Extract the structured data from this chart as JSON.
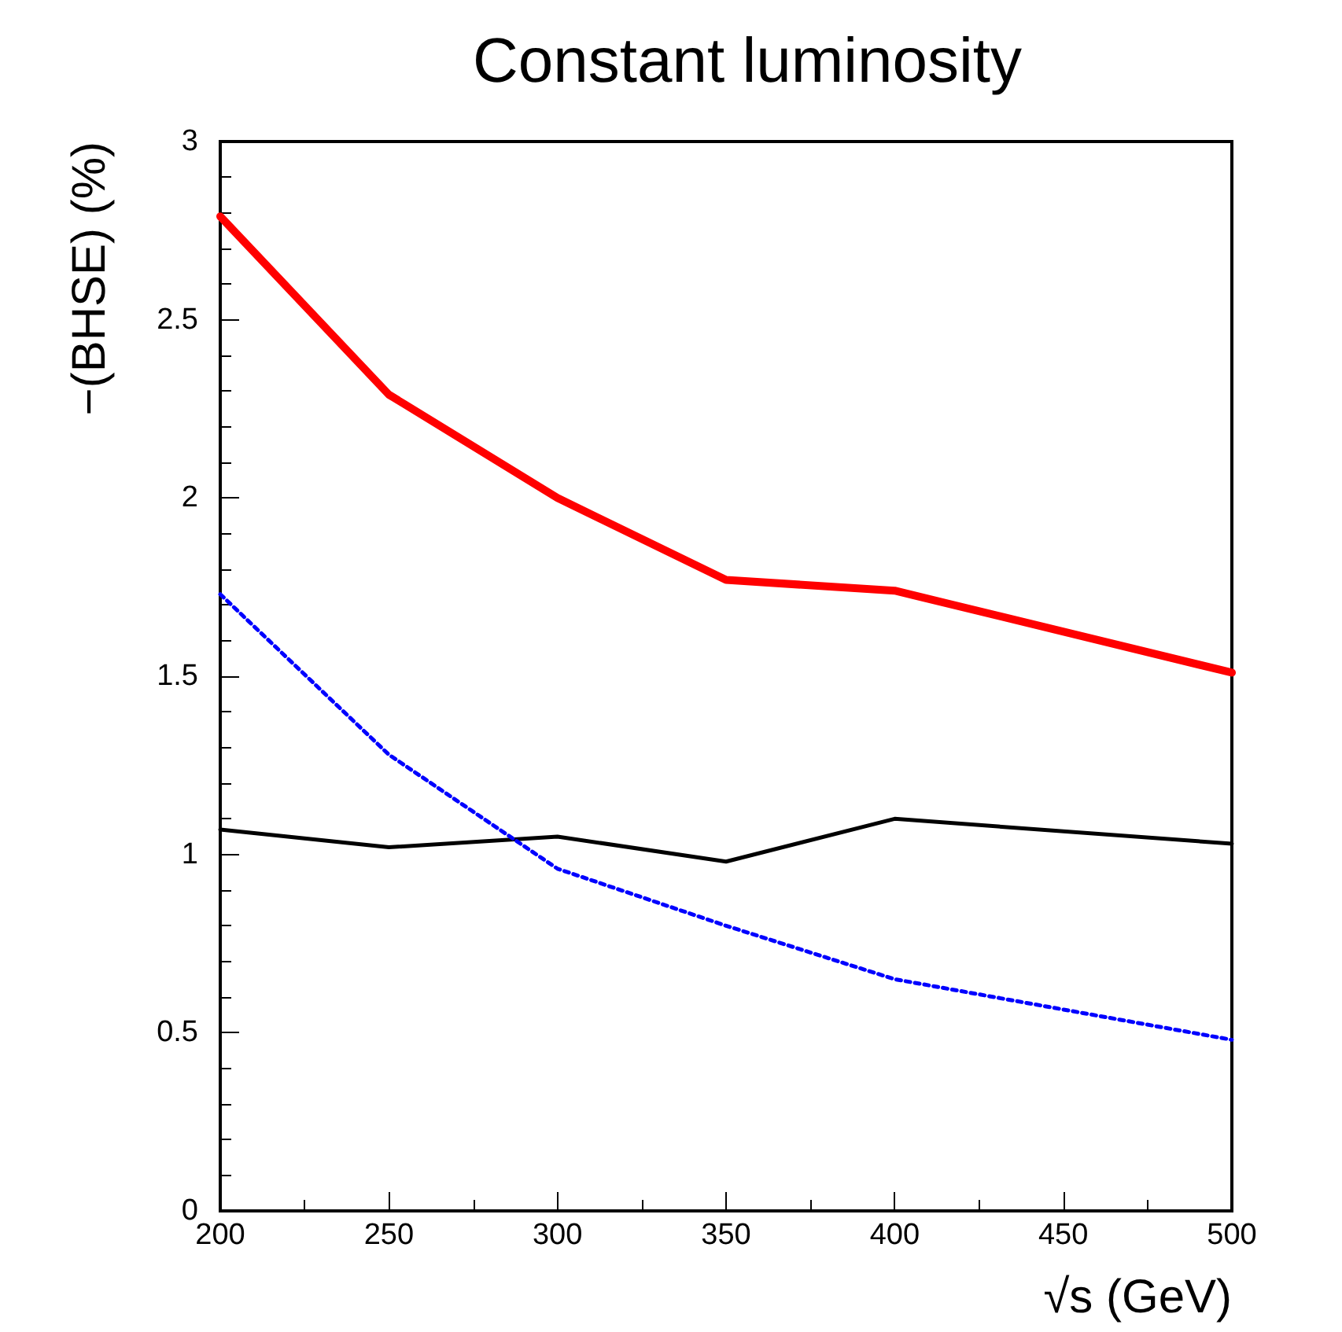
{
  "chart_data": {
    "type": "line",
    "title": "Constant luminosity",
    "xlabel": "√s (GeV)",
    "ylabel": "−(BHSE) (%)",
    "x": [
      200,
      250,
      300,
      350,
      400,
      500
    ],
    "series": [
      {
        "color": "#ff0000",
        "values": [
          2.79,
          2.29,
          2.0,
          1.77,
          1.74,
          1.51
        ],
        "line_style": "solid"
      },
      {
        "color": "#0000ff",
        "values": [
          1.73,
          1.28,
          0.96,
          0.8,
          0.65,
          0.48
        ],
        "line_style": "dotted"
      },
      {
        "color": "#000000",
        "values": [
          1.07,
          1.02,
          1.05,
          0.98,
          1.1,
          1.03
        ],
        "line_style": "solid"
      }
    ],
    "xlim": [
      200,
      500
    ],
    "xticks": [
      200,
      250,
      300,
      350,
      400,
      450,
      500
    ],
    "ylim": [
      0,
      3
    ],
    "yticks": [
      0,
      {
        "value": 0.5,
        "label": "0.5"
      },
      1,
      {
        "value": 1.5,
        "label": "1.5"
      },
      2,
      {
        "value": 2.5,
        "label": "2.5"
      },
      3
    ],
    "grid": false,
    "marker": "none"
  }
}
